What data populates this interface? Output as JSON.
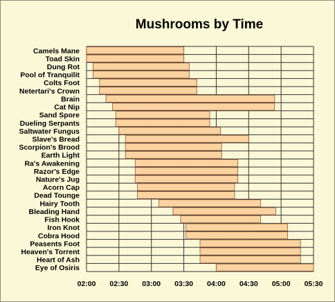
{
  "chart_data": {
    "type": "bar",
    "orientation": "horizontal-range",
    "title": "Mushrooms by Time",
    "xlabel": "",
    "ylabel": "",
    "xlim": [
      "02:00",
      "05:30"
    ],
    "x_ticks": [
      "02:00",
      "02:30",
      "03:00",
      "03:30",
      "04:00",
      "04:30",
      "05:00",
      "05:30"
    ],
    "grid": true,
    "colors": {
      "bar_fill": "#fbd3a0",
      "bar_edge": "#8a5a3a",
      "background": "#fbf8d8"
    },
    "categories": [
      "Camels Mane",
      "Toad Skin",
      "Dung Rot",
      "Pool of Tranquilit",
      "Colts Foot",
      "Netertari's Crown",
      "Brain",
      "Cat Nip",
      "Sand Spore",
      "Dueling Serpants",
      "Saltwater Fungus",
      "Slave's Bread",
      "Scorpion's Brood",
      "Earth Light",
      "Ra's Awakening",
      "Razor's Edge",
      "Nature's Jug",
      "Acorn Cap",
      "Dead Tounge",
      "Hairy Tooth",
      "Bleading Hand",
      "Fish Hook",
      "Iron Knot",
      "Cobra Hood",
      "Peasents Foot",
      "Heaven's Torrent",
      "Heart of Ash",
      "Eye of Osiris"
    ],
    "ranges": [
      [
        "02:00",
        "03:30"
      ],
      [
        "02:00",
        "03:30"
      ],
      [
        "02:06",
        "03:35"
      ],
      [
        "02:06",
        "03:35"
      ],
      [
        "02:12",
        "03:42"
      ],
      [
        "02:12",
        "03:42"
      ],
      [
        "02:18",
        "04:54"
      ],
      [
        "02:24",
        "04:54"
      ],
      [
        "02:27",
        "03:54"
      ],
      [
        "02:27",
        "03:54"
      ],
      [
        "02:30",
        "04:04"
      ],
      [
        "02:36",
        "04:30"
      ],
      [
        "02:36",
        "04:05"
      ],
      [
        "02:36",
        "04:05"
      ],
      [
        "02:45",
        "04:20"
      ],
      [
        "02:45",
        "04:20"
      ],
      [
        "02:45",
        "04:20"
      ],
      [
        "02:47",
        "04:17"
      ],
      [
        "02:47",
        "04:17"
      ],
      [
        "03:07",
        "04:41"
      ],
      [
        "03:20",
        "04:55"
      ],
      [
        "03:27",
        "04:41"
      ],
      [
        "03:32",
        "05:06"
      ],
      [
        "03:32",
        "05:06"
      ],
      [
        "03:45",
        "05:18"
      ],
      [
        "03:45",
        "05:18"
      ],
      [
        "03:45",
        "05:18"
      ],
      [
        "04:00",
        "05:30"
      ]
    ]
  }
}
